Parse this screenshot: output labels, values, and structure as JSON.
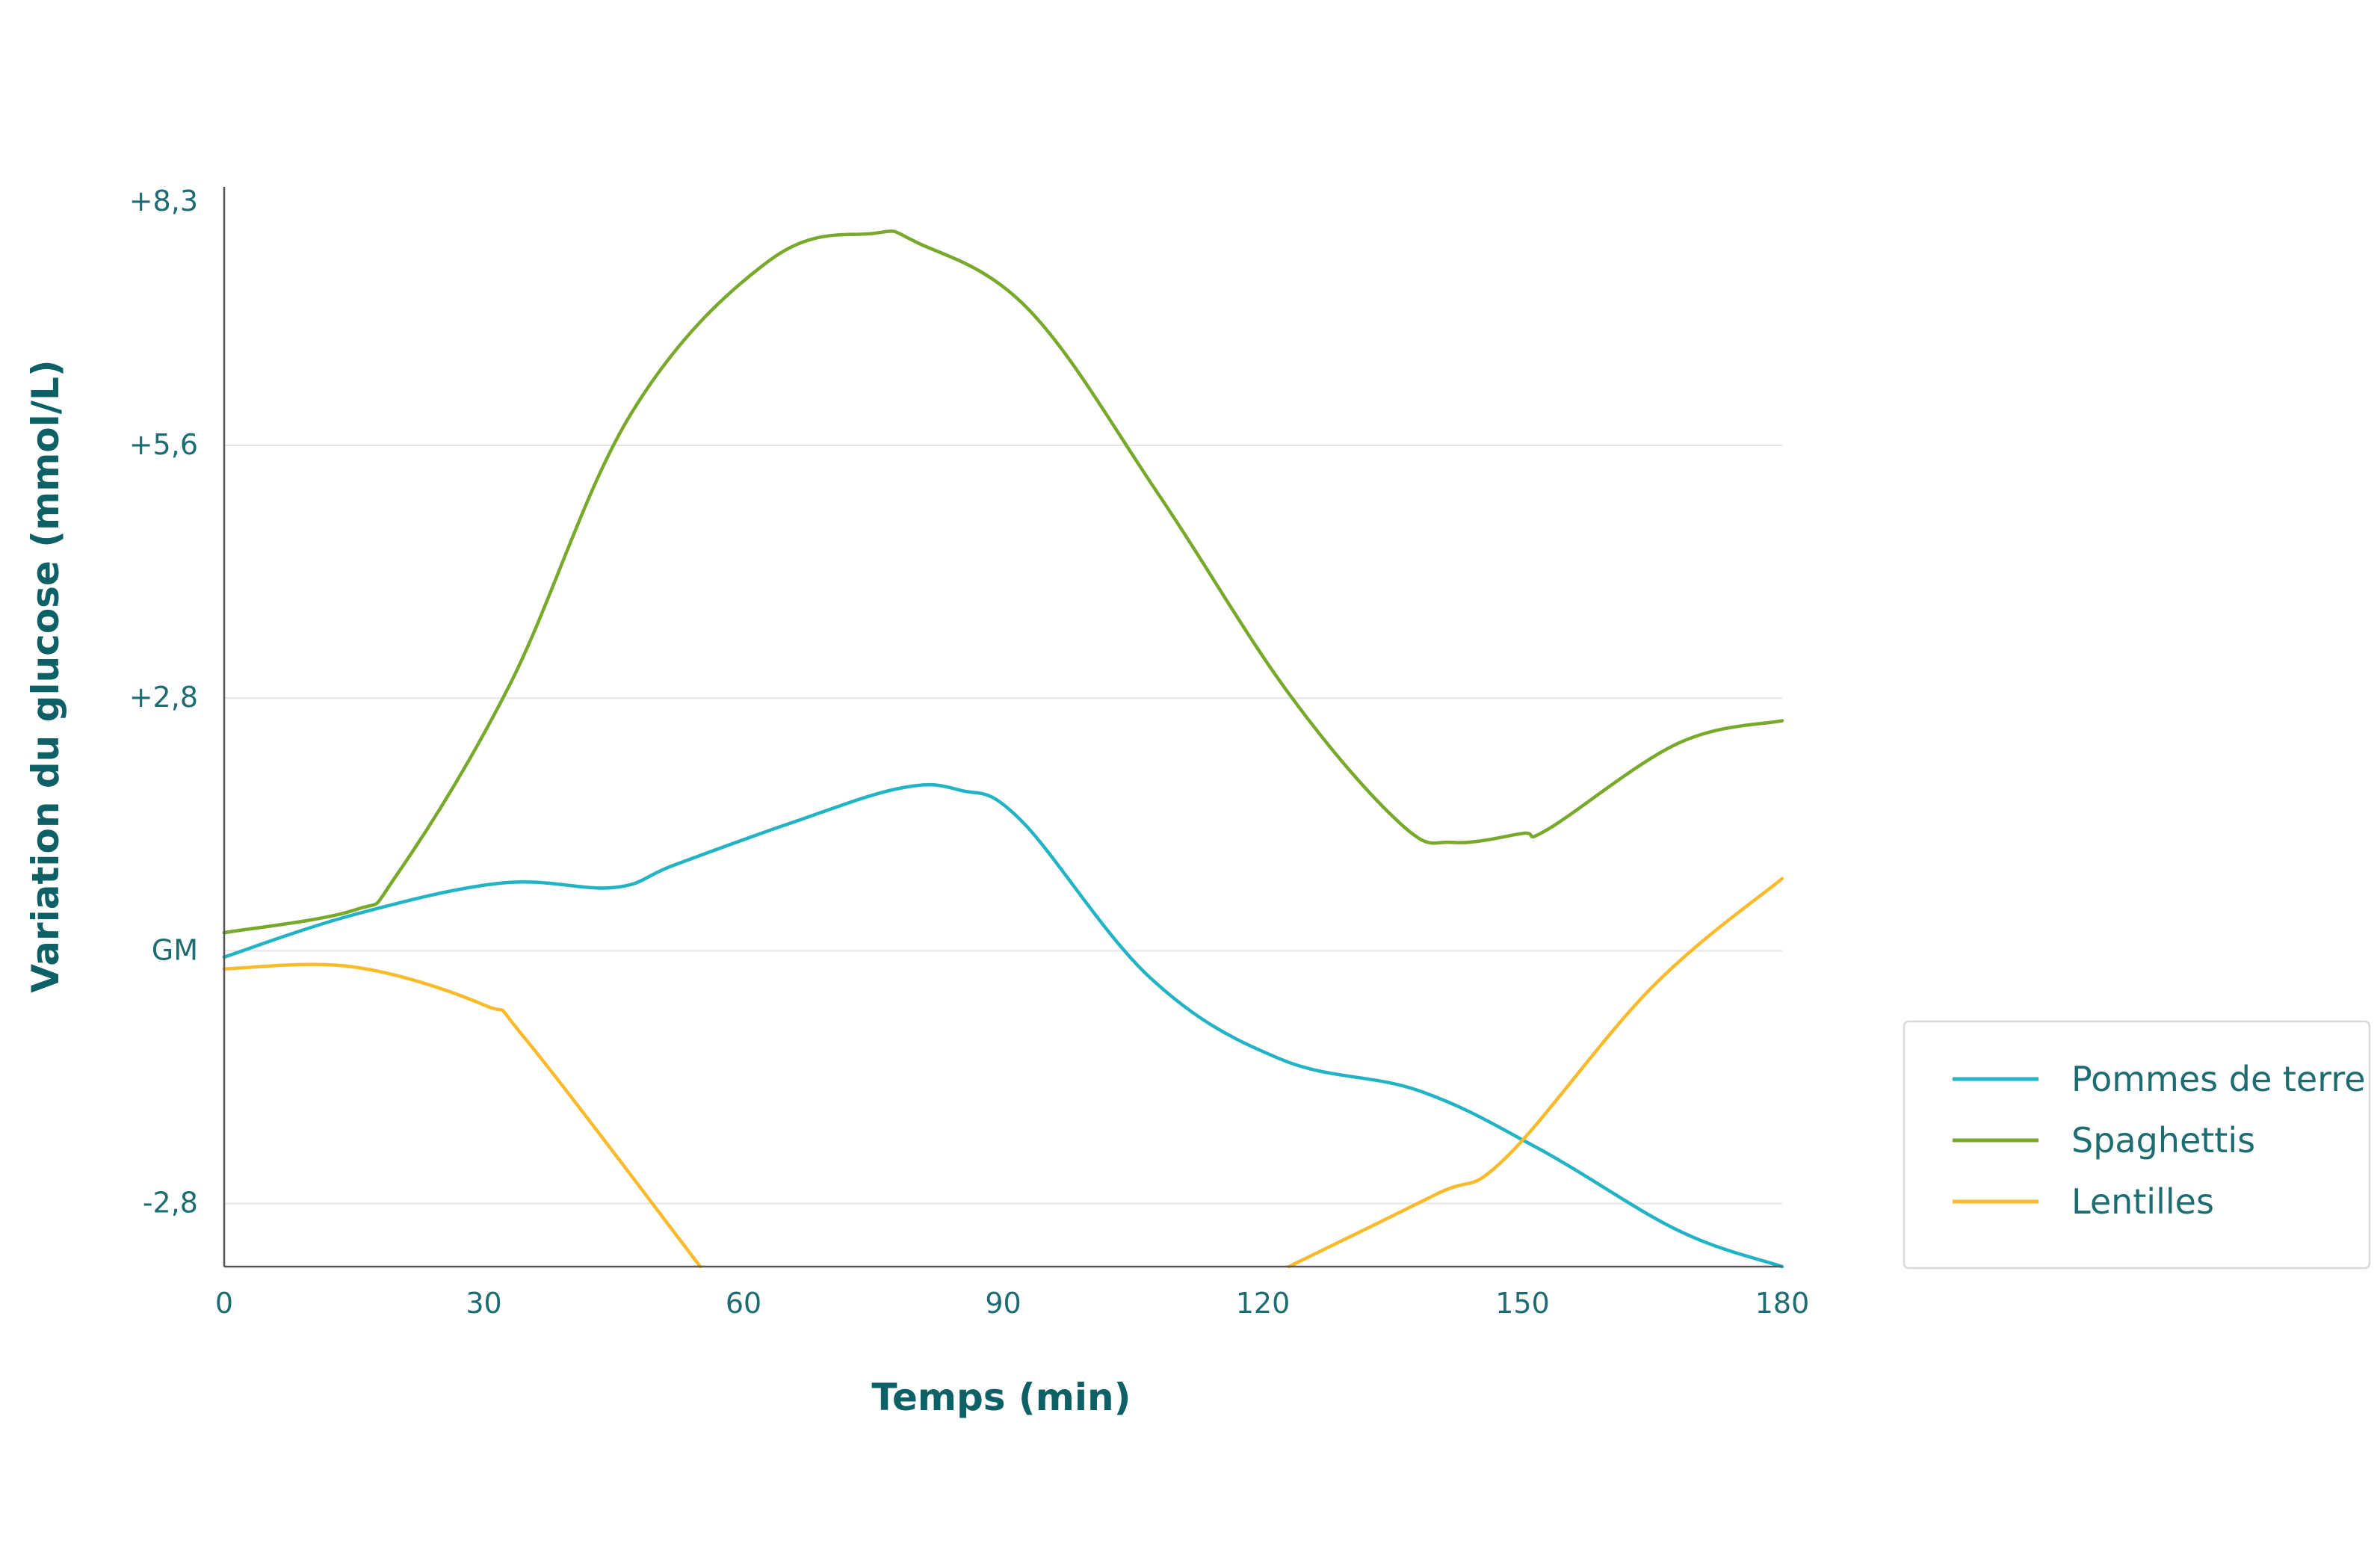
{
  "chart_data": {
    "type": "line",
    "xlabel": "Temps (min)",
    "ylabel": "Variation du glucose (mmol/L)",
    "xlim": [
      0,
      180
    ],
    "ylim": [
      -3.5,
      8.3
    ],
    "x_ticks": [
      {
        "value": 0,
        "label": "0"
      },
      {
        "value": 30,
        "label": "30"
      },
      {
        "value": 60,
        "label": "60"
      },
      {
        "value": 90,
        "label": "90"
      },
      {
        "value": 120,
        "label": "120"
      },
      {
        "value": 150,
        "label": "150"
      },
      {
        "value": 180,
        "label": "180"
      }
    ],
    "y_ticks": [
      {
        "value": 8.3,
        "label": "+8,3"
      },
      {
        "value": 5.6,
        "label": "+5,6"
      },
      {
        "value": 2.8,
        "label": "+2,8"
      },
      {
        "value": 0,
        "label": "GM"
      },
      {
        "value": -2.8,
        "label": "-2,8"
      }
    ],
    "grid": "horizontal",
    "legend_position": "right",
    "series": [
      {
        "name": "Pommes de terre",
        "color": "#22b3c4",
        "x": [
          0,
          15,
          32,
          45,
          52,
          65,
          78,
          85,
          92,
          107,
          122,
          138,
          152,
          168,
          180
        ],
        "y": [
          -0.07,
          0.4,
          0.75,
          0.7,
          0.95,
          1.4,
          1.8,
          1.78,
          1.45,
          -0.3,
          -1.2,
          -1.55,
          -2.2,
          -3.1,
          -3.5
        ]
      },
      {
        "name": "Spaghettis",
        "color": "#78a92b",
        "x": [
          0,
          15,
          20,
          33,
          47,
          63,
          75,
          80,
          93,
          108,
          123,
          136,
          142,
          150,
          153,
          168,
          180
        ],
        "y": [
          0.2,
          0.45,
          0.85,
          2.95,
          5.95,
          7.65,
          7.95,
          7.85,
          7.1,
          5.05,
          2.85,
          1.4,
          1.2,
          1.3,
          1.35,
          2.3,
          2.55
        ]
      },
      {
        "name": "Lentilles",
        "color": "#f9bb2b",
        "x": [
          0,
          15,
          30,
          35,
          55,
          null,
          123,
          140,
          148,
          165,
          180
        ],
        "y": [
          -0.2,
          -0.18,
          -0.6,
          -1.0,
          -3.5,
          null,
          -3.5,
          -2.7,
          -2.3,
          -0.4,
          0.8
        ]
      }
    ]
  }
}
